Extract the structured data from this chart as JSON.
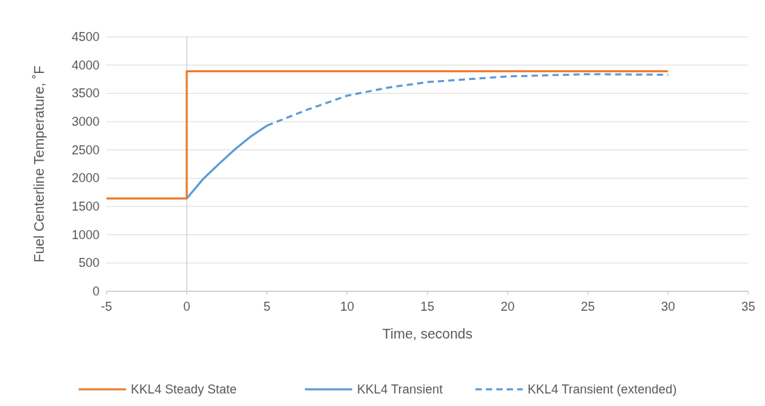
{
  "chart_data": {
    "type": "line",
    "xlabel": "Time, seconds",
    "ylabel": "Fuel Centerline Temperature, ˚F",
    "xlim": [
      -5,
      35
    ],
    "xticks": [
      -5,
      0,
      5,
      10,
      15,
      20,
      25,
      30,
      35
    ],
    "ylim": [
      0,
      4500
    ],
    "yticks": [
      0,
      500,
      1000,
      1500,
      2000,
      2500,
      3000,
      3500,
      4000,
      4500
    ],
    "grid": "y",
    "legend": "bottom",
    "marker": "none",
    "series": [
      {
        "name": "KKL4 Steady State",
        "color": "#ed7d31",
        "line_style": "solid",
        "x": [
          -5,
          0,
          0,
          30
        ],
        "values": [
          1640,
          1640,
          3890,
          3890
        ]
      },
      {
        "name": "KKL4 Transient",
        "color": "#5b9bd5",
        "line_style": "solid",
        "x": [
          0,
          1,
          2,
          3,
          4,
          5
        ],
        "values": [
          1640,
          1980,
          2250,
          2510,
          2740,
          2930
        ]
      },
      {
        "name": "KKL4 Transient (extended)",
        "color": "#5b9bd5",
        "line_style": "dashed",
        "x": [
          5,
          7.5,
          10,
          12.5,
          15,
          20,
          25,
          30
        ],
        "values": [
          2930,
          3210,
          3460,
          3600,
          3700,
          3800,
          3840,
          3830
        ]
      }
    ]
  }
}
